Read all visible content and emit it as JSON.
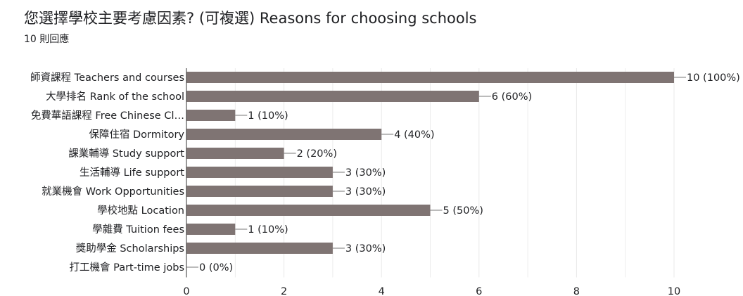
{
  "header": {
    "title": "您選擇學校主要考慮因素? (可複選) Reasons for choosing schools",
    "response_count": "10 則回應"
  },
  "colors": {
    "bar": "#7f7473",
    "grid": "#e8e8e8",
    "axis": "#333333",
    "text": "#202124"
  },
  "chart_data": {
    "type": "bar",
    "orientation": "horizontal",
    "categories": [
      "師資課程 Teachers and courses",
      "大學排名 Rank of the school",
      "免費華語課程 Free Chinese Cl…",
      "保障住宿 Dormitory",
      "課業輔導 Study support",
      "生活輔導 Life support",
      "就業機會 Work Opportunities",
      "學校地點 Location",
      "學雜費 Tuition fees",
      "獎助學金 Scholarships",
      "打工機會 Part-time jobs"
    ],
    "values": [
      10,
      6,
      1,
      4,
      2,
      3,
      3,
      5,
      1,
      3,
      0
    ],
    "data_labels": [
      "10 (100%)",
      "6 (60%)",
      "1 (10%)",
      "4 (40%)",
      "2 (20%)",
      "3 (30%)",
      "3 (30%)",
      "5 (50%)",
      "1 (10%)",
      "3 (30%)",
      "0 (0%)"
    ],
    "xlim": [
      0,
      10
    ],
    "x_ticks": [
      0,
      2,
      4,
      6,
      8,
      10
    ],
    "grid": true,
    "title": "",
    "xlabel": "",
    "ylabel": ""
  }
}
